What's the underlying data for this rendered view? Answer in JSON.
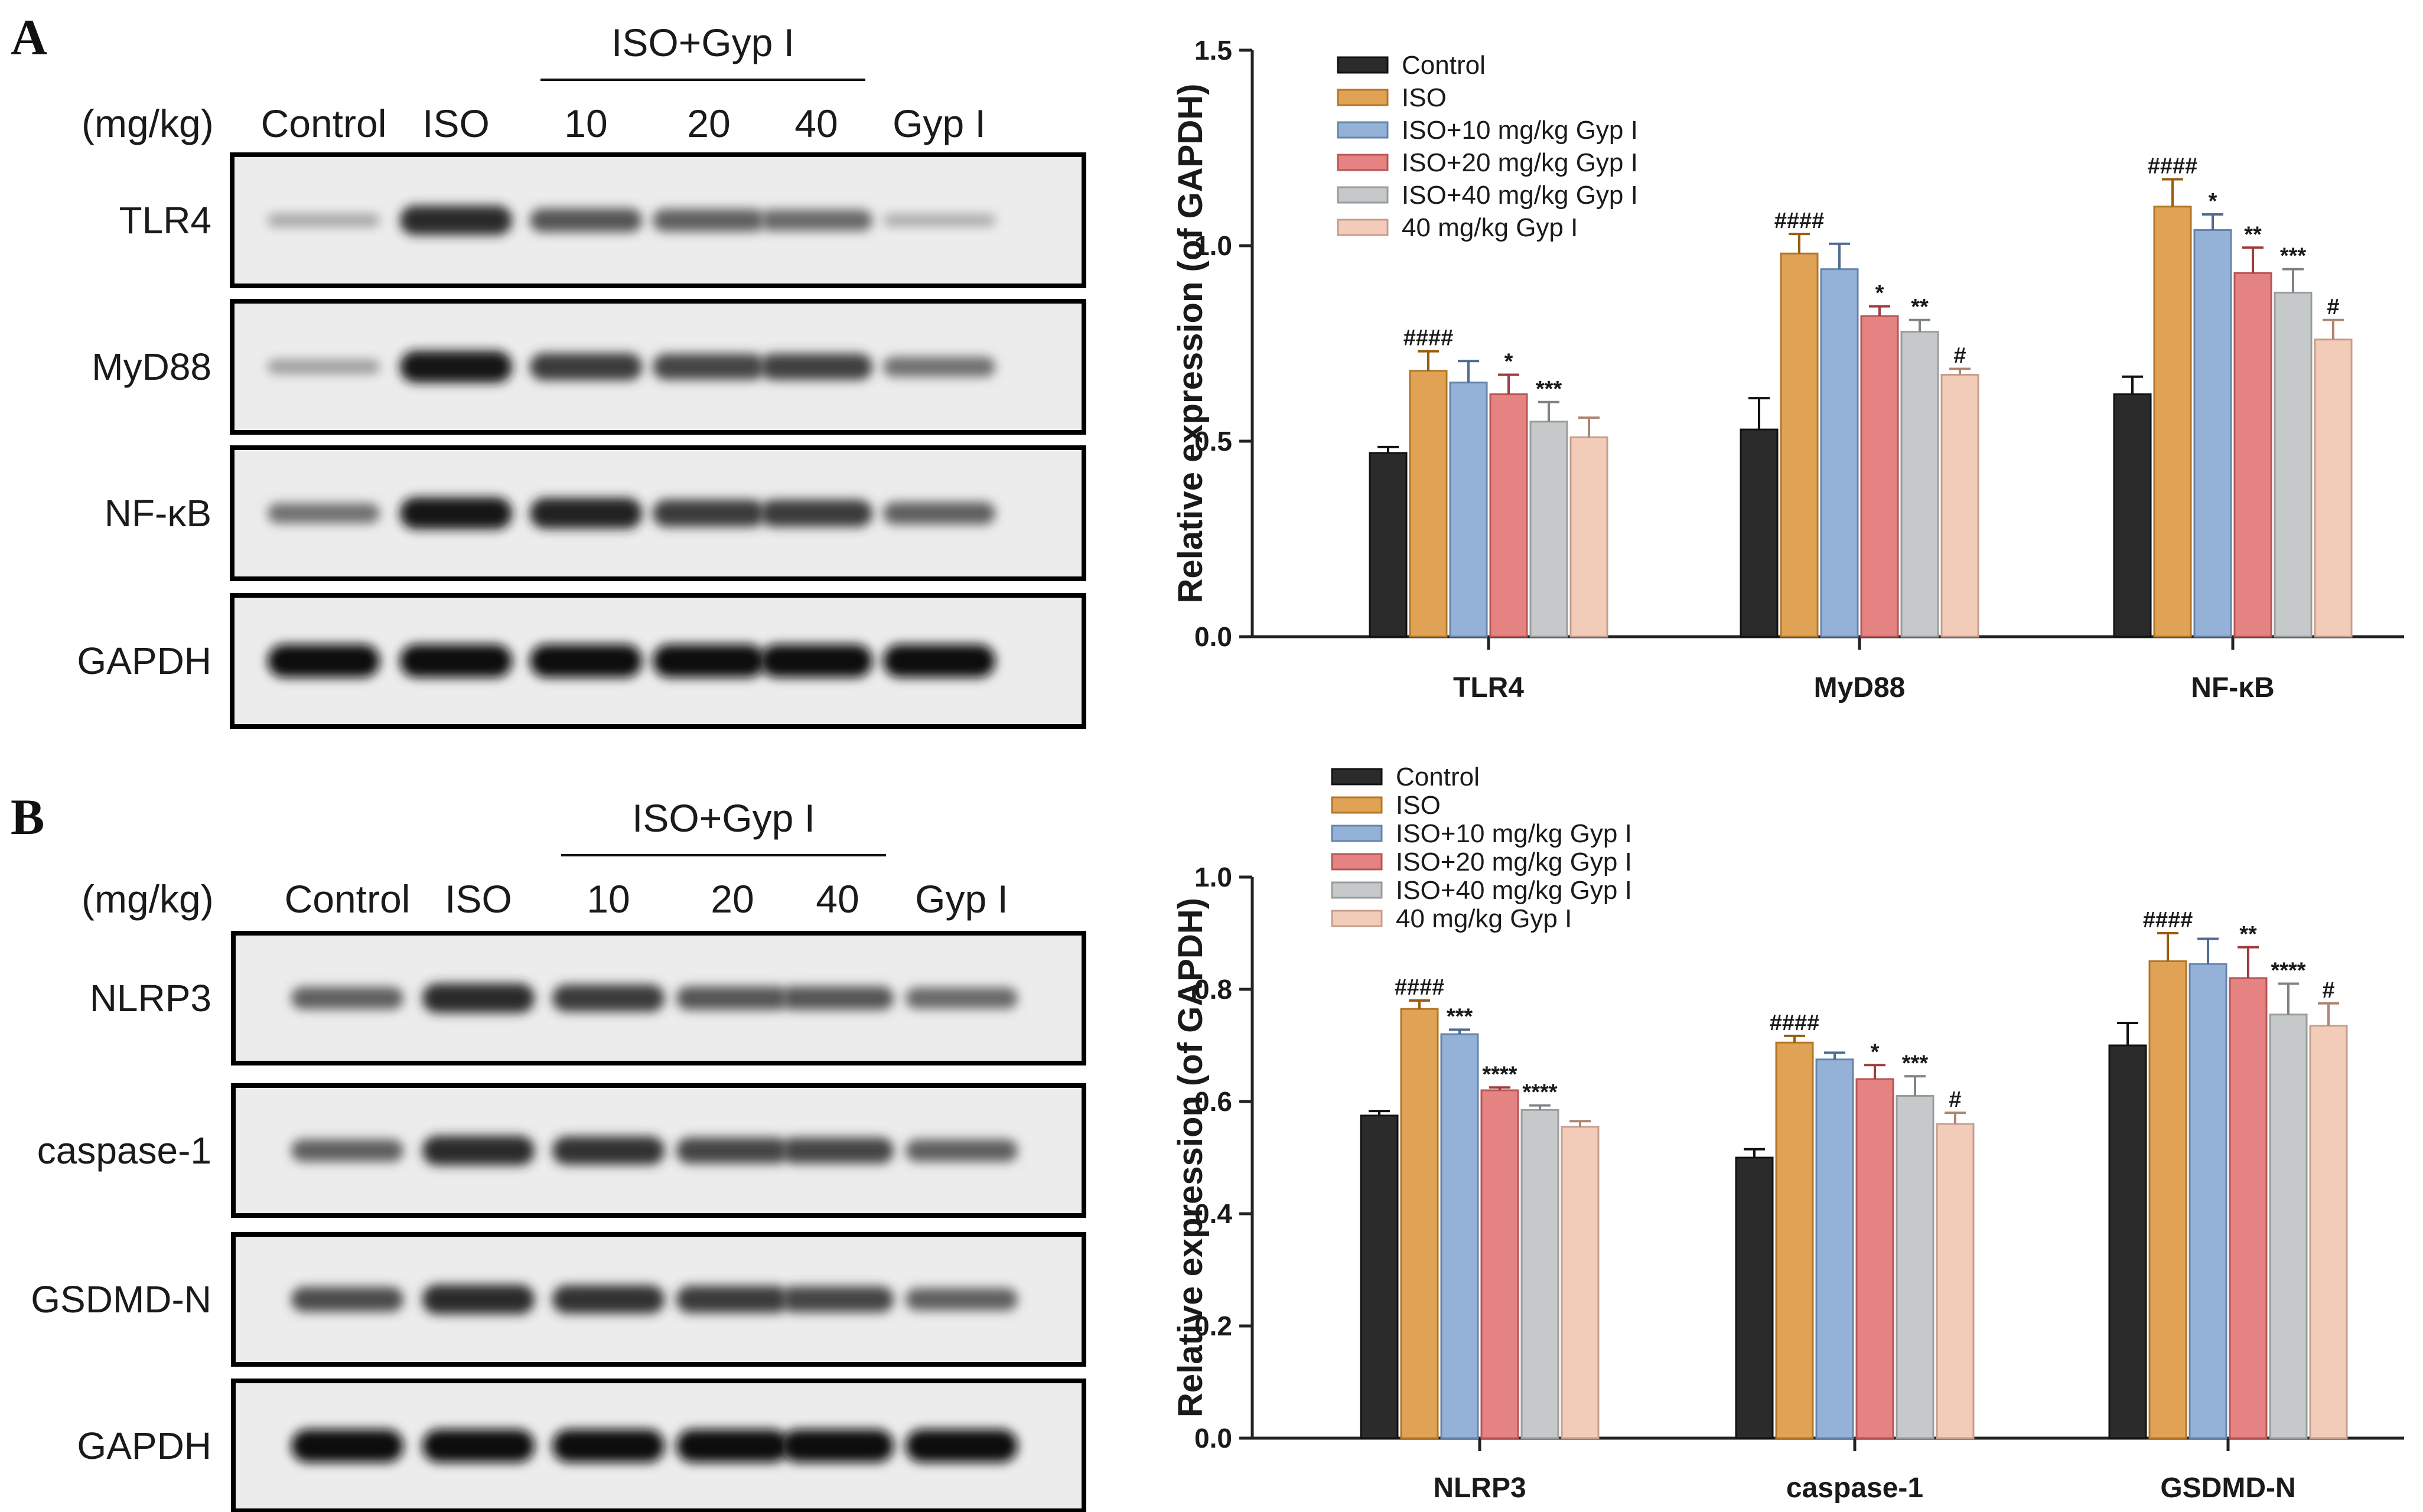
{
  "panels": [
    {
      "letter": "A",
      "blot": {
        "unit_label": "(mg/kg)",
        "group_header": "ISO+Gyp I",
        "lanes": [
          "Control",
          "ISO",
          "10",
          "20",
          "40",
          "Gyp I"
        ],
        "rows": [
          {
            "label": "TLR4",
            "bands": [
              0.15,
              0.85,
              0.6,
              0.55,
              0.5,
              0.12
            ]
          },
          {
            "label": "MyD88",
            "bands": [
              0.2,
              0.95,
              0.75,
              0.7,
              0.72,
              0.45
            ]
          },
          {
            "label": "NF-κB",
            "bands": [
              0.45,
              0.95,
              0.9,
              0.75,
              0.75,
              0.55
            ]
          },
          {
            "label": "GAPDH",
            "bands": [
              1,
              1,
              1,
              1,
              1,
              1
            ]
          }
        ]
      }
    },
    {
      "letter": "B",
      "blot": {
        "unit_label": "(mg/kg)",
        "group_header": "ISO+Gyp I",
        "lanes": [
          "Control",
          "ISO",
          "10",
          "20",
          "40",
          "Gyp I"
        ],
        "rows": [
          {
            "label": "NLRP3",
            "bands": [
              0.55,
              0.85,
              0.75,
              0.6,
              0.6,
              0.5
            ]
          },
          {
            "label": "caspase-1",
            "bands": [
              0.55,
              0.85,
              0.8,
              0.7,
              0.7,
              0.55
            ]
          },
          {
            "label": "GSDMD-N",
            "bands": [
              0.65,
              0.85,
              0.8,
              0.75,
              0.7,
              0.55
            ]
          },
          {
            "label": "GAPDH",
            "bands": [
              1,
              1,
              1,
              1,
              1,
              1
            ]
          }
        ]
      }
    }
  ],
  "chart_data": [
    {
      "type": "bar",
      "title": "",
      "xlabel": "",
      "ylabel": "Relative expression (of GAPDH)",
      "ylim": [
        0,
        1.5
      ],
      "yticks": [
        "0.0",
        "0.5",
        "1.0",
        "1.5"
      ],
      "grid": false,
      "legend_position": "top-left",
      "categories": [
        "TLR4",
        "MyD88",
        "NF-κB"
      ],
      "series": [
        {
          "name": "Control",
          "color": "#2b2b2b",
          "values": [
            0.47,
            0.53,
            0.62
          ],
          "errors": [
            0.015,
            0.08,
            0.045
          ],
          "annotations": [
            "",
            "",
            ""
          ]
        },
        {
          "name": "ISO",
          "color": "#e0a355",
          "values": [
            0.68,
            0.98,
            1.1
          ],
          "errors": [
            0.05,
            0.05,
            0.07
          ],
          "annotations": [
            "####",
            "####",
            "####"
          ]
        },
        {
          "name": "ISO+10 mg/kg Gyp I",
          "color": "#94b1d7",
          "values": [
            0.65,
            0.94,
            1.04
          ],
          "errors": [
            0.055,
            0.065,
            0.04
          ],
          "annotations": [
            "",
            "",
            "*"
          ]
        },
        {
          "name": "ISO+20 mg/kg Gyp I",
          "color": "#e58282",
          "values": [
            0.62,
            0.82,
            0.93
          ],
          "errors": [
            0.05,
            0.025,
            0.065
          ],
          "annotations": [
            "*",
            "*",
            "**"
          ]
        },
        {
          "name": "ISO+40 mg/kg Gyp I",
          "color": "#c6c9ca",
          "values": [
            0.55,
            0.78,
            0.88
          ],
          "errors": [
            0.05,
            0.03,
            0.06
          ],
          "annotations": [
            "***",
            "**",
            "***"
          ]
        },
        {
          "name": "40 mg/kg Gyp I",
          "color": "#f3cbb9",
          "values": [
            0.51,
            0.67,
            0.76
          ],
          "errors": [
            0.05,
            0.015,
            0.05
          ],
          "annotations": [
            "",
            "#",
            "#"
          ]
        }
      ]
    },
    {
      "type": "bar",
      "title": "",
      "xlabel": "",
      "ylabel": "Relative expression (of GAPDH)",
      "ylim": [
        0,
        1.0
      ],
      "yticks": [
        "0.0",
        "0.2",
        "0.4",
        "0.6",
        "0.8",
        "1.0"
      ],
      "grid": false,
      "legend_position": "top-left",
      "categories": [
        "NLRP3",
        "caspase-1",
        "GSDMD-N"
      ],
      "series": [
        {
          "name": "Control",
          "color": "#2b2b2b",
          "values": [
            0.575,
            0.5,
            0.7
          ],
          "errors": [
            0.008,
            0.015,
            0.04
          ],
          "annotations": [
            "",
            "",
            ""
          ]
        },
        {
          "name": "ISO",
          "color": "#e0a355",
          "values": [
            0.765,
            0.705,
            0.85
          ],
          "errors": [
            0.015,
            0.012,
            0.05
          ],
          "annotations": [
            "####",
            "####",
            "####"
          ]
        },
        {
          "name": "ISO+10 mg/kg Gyp I",
          "color": "#94b1d7",
          "values": [
            0.72,
            0.675,
            0.845
          ],
          "errors": [
            0.008,
            0.012,
            0.045
          ],
          "annotations": [
            "***",
            "",
            ""
          ]
        },
        {
          "name": "ISO+20 mg/kg Gyp I",
          "color": "#e58282",
          "values": [
            0.62,
            0.64,
            0.82
          ],
          "errors": [
            0.005,
            0.025,
            0.055
          ],
          "annotations": [
            "****",
            "*",
            "**"
          ]
        },
        {
          "name": "ISO+40 mg/kg Gyp I",
          "color": "#c6c9ca",
          "values": [
            0.585,
            0.61,
            0.755
          ],
          "errors": [
            0.008,
            0.035,
            0.055
          ],
          "annotations": [
            "****",
            "***",
            "****"
          ]
        },
        {
          "name": "40 mg/kg Gyp I",
          "color": "#f3cbb9",
          "values": [
            0.555,
            0.56,
            0.735
          ],
          "errors": [
            0.01,
            0.02,
            0.04
          ],
          "annotations": [
            "",
            "#",
            "#"
          ]
        }
      ]
    }
  ]
}
